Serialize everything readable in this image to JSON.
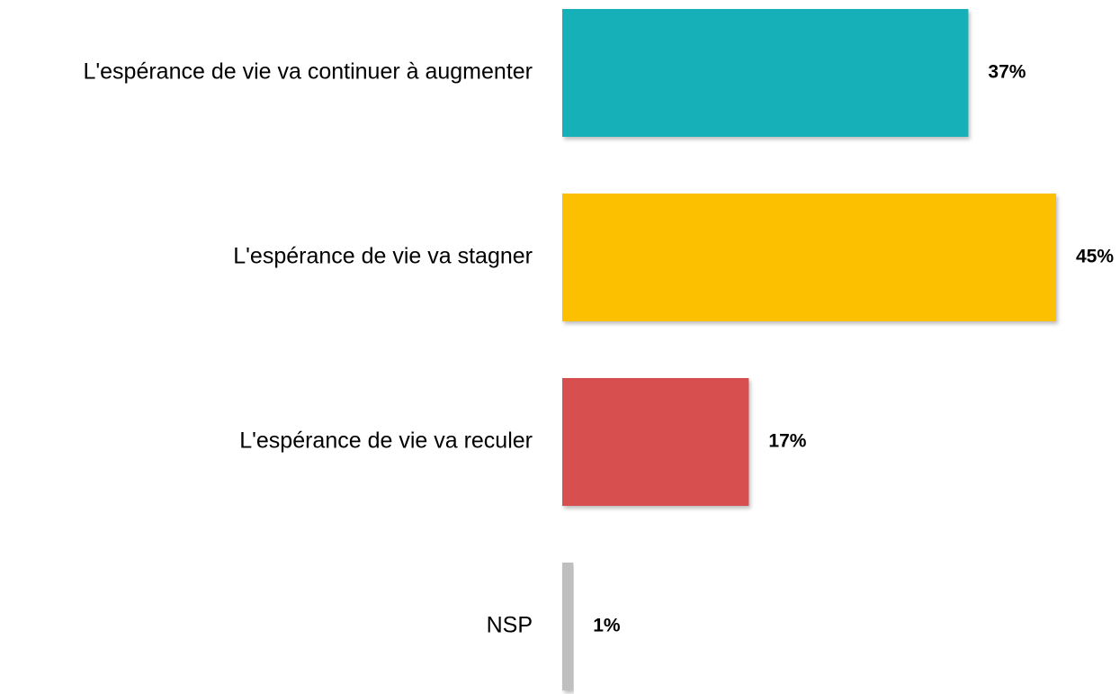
{
  "chart_data": {
    "type": "bar",
    "orientation": "horizontal",
    "categories": [
      "L'espérance de vie va continuer à augmenter",
      "L'espérance de vie va stagner",
      "L'espérance de vie va reculer",
      "NSP"
    ],
    "values": [
      37,
      45,
      17,
      1
    ],
    "value_labels": [
      "37%",
      "45%",
      "17%",
      "1%"
    ],
    "colors": [
      "#15b0b8",
      "#fdc000",
      "#d84f4f",
      "#bfbfbf"
    ]
  }
}
